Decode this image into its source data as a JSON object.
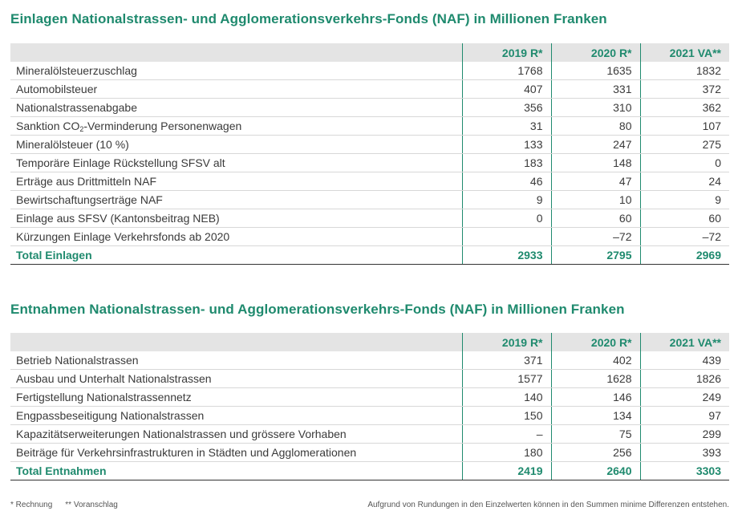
{
  "einlagen": {
    "title": "Einlagen Nationalstrassen- und Agglomerationsverkehrs-Fonds (NAF) in Millionen Franken",
    "columns": [
      "2019 R*",
      "2020 R*",
      "2021 VA**"
    ],
    "rows": [
      {
        "label": "Mineralölsteuerzuschlag",
        "v2019": "1768",
        "v2020": "1635",
        "v2021": "1832"
      },
      {
        "label": "Automobilsteuer",
        "v2019": "407",
        "v2020": "331",
        "v2021": "372"
      },
      {
        "label": "Nationalstrassenabgabe",
        "v2019": "356",
        "v2020": "310",
        "v2021": "362"
      },
      {
        "label_pre": "Sanktion CO",
        "label_sub": "2",
        "label_post": "-Verminderung Personenwagen",
        "v2019": "31",
        "v2020": "80",
        "v2021": "107"
      },
      {
        "label": "Mineralölsteuer (10 %)",
        "v2019": "133",
        "v2020": "247",
        "v2021": "275"
      },
      {
        "label": "Temporäre Einlage Rückstellung SFSV alt",
        "v2019": "183",
        "v2020": "148",
        "v2021": "0"
      },
      {
        "label": "Erträge aus Drittmitteln NAF",
        "v2019": "46",
        "v2020": "47",
        "v2021": "24"
      },
      {
        "label": "Bewirtschaftungserträge NAF",
        "v2019": "9",
        "v2020": "10",
        "v2021": "9"
      },
      {
        "label": "Einlage aus SFSV (Kantonsbeitrag NEB)",
        "v2019": "0",
        "v2020": "60",
        "v2021": "60"
      },
      {
        "label": "Kürzungen Einlage Verkehrsfonds ab 2020",
        "v2019": "",
        "v2020": "–72",
        "v2021": "–72"
      }
    ],
    "total": {
      "label": "Total Einlagen",
      "v2019": "2933",
      "v2020": "2795",
      "v2021": "2969"
    }
  },
  "entnahmen": {
    "title": "Entnahmen Nationalstrassen- und Agglomerationsverkehrs-Fonds (NAF) in Millionen Franken",
    "columns": [
      "2019 R*",
      "2020 R*",
      "2021 VA**"
    ],
    "rows": [
      {
        "label": "Betrieb Nationalstrassen",
        "v2019": "371",
        "v2020": "402",
        "v2021": "439"
      },
      {
        "label": "Ausbau und Unterhalt Nationalstrassen",
        "v2019": "1577",
        "v2020": "1628",
        "v2021": "1826"
      },
      {
        "label": "Fertigstellung Nationalstrassennetz",
        "v2019": "140",
        "v2020": "146",
        "v2021": "249"
      },
      {
        "label": "Engpassbeseitigung Nationalstrassen",
        "v2019": "150",
        "v2020": "134",
        "v2021": "97"
      },
      {
        "label": "Kapazitätserweiterungen Nationalstrassen und grössere Vorhaben",
        "v2019": "–",
        "v2020": "75",
        "v2021": "299"
      },
      {
        "label": "Beiträge für Verkehrsinfrastrukturen in Städten und Agglomerationen",
        "v2019": "180",
        "v2020": "256",
        "v2021": "393"
      }
    ],
    "total": {
      "label": "Total Entnahmen",
      "v2019": "2419",
      "v2020": "2640",
      "v2021": "3303"
    }
  },
  "footer": {
    "note_r": "* Rechnung",
    "note_va": "** Voranschlag",
    "rounding": "Aufgrund von Rundungen in den Einzelwerten können in den Summen minime Differenzen entstehen."
  },
  "colors": {
    "accent": "#1f8a6e",
    "header_bg": "#e4e4e4",
    "text": "#3a3a3a"
  }
}
